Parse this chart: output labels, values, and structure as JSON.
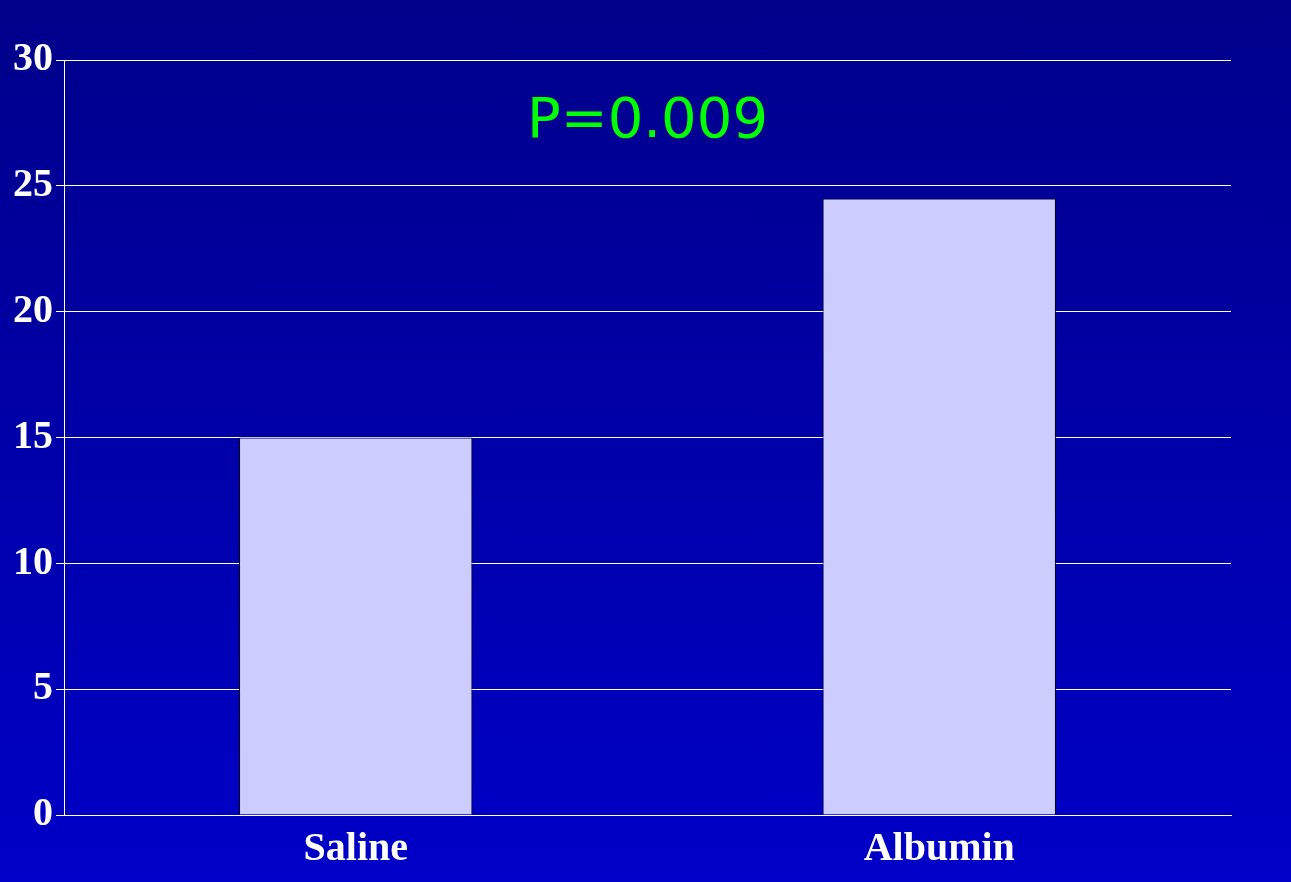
{
  "chart_data": {
    "type": "bar",
    "categories": [
      "Saline",
      "Albumin"
    ],
    "values": [
      15,
      24.5
    ],
    "color": "#ccccff",
    "ylim": [
      0,
      30
    ],
    "yticks": [
      0,
      5,
      10,
      15,
      20,
      25,
      30
    ],
    "grid": "y",
    "annotations": [
      "P=0.009"
    ]
  }
}
